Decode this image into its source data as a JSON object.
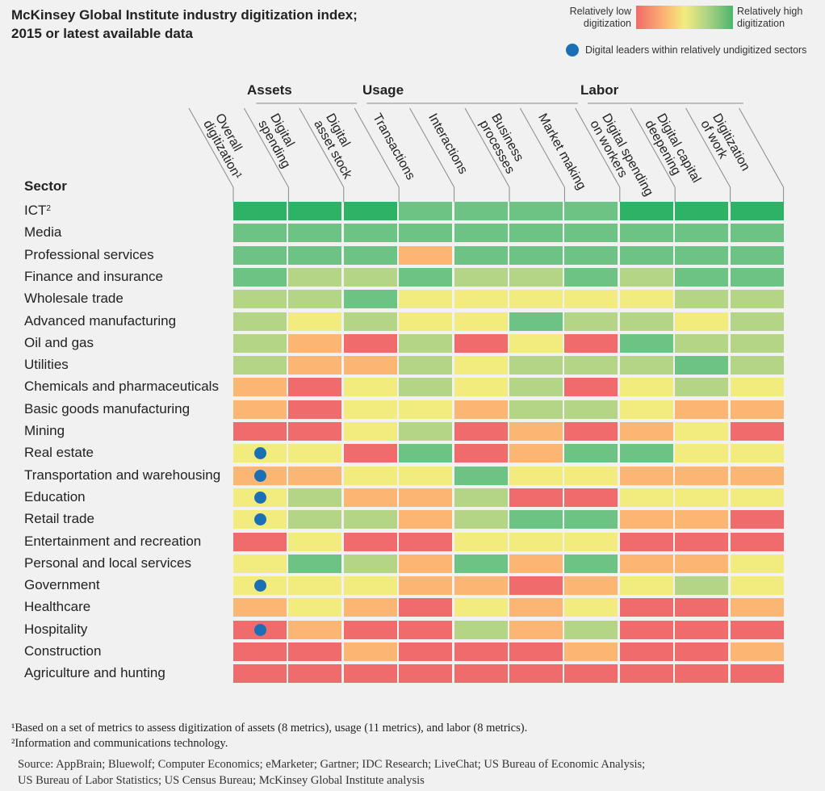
{
  "chart_data": {
    "type": "heatmap",
    "title": "McKinsey Global Institute industry digitization index; 2015 or latest available data",
    "title_lines": [
      "McKinsey Global Institute industry digitization index;",
      "2015 or latest available data"
    ],
    "legend": {
      "low_label": [
        "Relatively low",
        "digitization"
      ],
      "high_label": [
        "Relatively high",
        "digitization"
      ],
      "leader_label": "Digital leaders within relatively undigitized sectors",
      "placement": "top-right"
    },
    "scale": {
      "description": "ordinal color level, 1 = relatively low digitization, 6 = relatively high digitization",
      "colors": {
        "1": "#f06b6b",
        "2": "#fcb673",
        "3": "#f2ec7e",
        "4": "#b3d585",
        "5": "#6cc383",
        "6": "#2eb266"
      },
      "leader_dot_color": "#1a6fb5"
    },
    "groups": [
      {
        "name": "Assets",
        "columns": [
          1,
          2
        ]
      },
      {
        "name": "Usage",
        "columns": [
          3,
          4,
          5,
          6
        ]
      },
      {
        "name": "Labor",
        "columns": [
          7,
          8,
          9
        ]
      }
    ],
    "columns": [
      {
        "lines": [
          "Overall",
          "digitization¹"
        ]
      },
      {
        "lines": [
          "Digital",
          "spending"
        ]
      },
      {
        "lines": [
          "Digital",
          "asset stock"
        ]
      },
      {
        "lines": [
          "Transactions"
        ]
      },
      {
        "lines": [
          "Interactions"
        ]
      },
      {
        "lines": [
          "Business",
          "processes"
        ]
      },
      {
        "lines": [
          "Market making"
        ]
      },
      {
        "lines": [
          "Digital spending",
          "on workers"
        ]
      },
      {
        "lines": [
          "Digital capital",
          "deepening"
        ]
      },
      {
        "lines": [
          "Digitization",
          "of work"
        ]
      }
    ],
    "row_header": "Sector",
    "rows": [
      {
        "sector": "ICT",
        "sup": "2",
        "levels": [
          6,
          6,
          6,
          5,
          5,
          5,
          5,
          6,
          6,
          6
        ],
        "leader": false
      },
      {
        "sector": "Media",
        "levels": [
          5,
          5,
          5,
          5,
          5,
          5,
          5,
          5,
          5,
          5
        ],
        "leader": false
      },
      {
        "sector": "Professional services",
        "levels": [
          5,
          5,
          5,
          2,
          5,
          5,
          5,
          5,
          5,
          5
        ],
        "leader": false
      },
      {
        "sector": "Finance and insurance",
        "levels": [
          5,
          4,
          4,
          5,
          4,
          4,
          5,
          4,
          5,
          5
        ],
        "leader": false
      },
      {
        "sector": "Wholesale trade",
        "levels": [
          4,
          4,
          5,
          3,
          3,
          3,
          3,
          3,
          4,
          4
        ],
        "leader": false
      },
      {
        "sector": "Advanced manufacturing",
        "levels": [
          4,
          3,
          4,
          3,
          3,
          5,
          4,
          4,
          3,
          4
        ],
        "leader": false
      },
      {
        "sector": "Oil and gas",
        "levels": [
          4,
          2,
          1,
          4,
          1,
          3,
          1,
          5,
          4,
          4
        ],
        "leader": false
      },
      {
        "sector": "Utilities",
        "levels": [
          4,
          2,
          2,
          4,
          3,
          4,
          4,
          4,
          5,
          4
        ],
        "leader": false
      },
      {
        "sector": "Chemicals and pharmaceuticals",
        "levels": [
          2,
          1,
          3,
          4,
          3,
          4,
          1,
          3,
          4,
          3
        ],
        "leader": false
      },
      {
        "sector": "Basic goods manufacturing",
        "levels": [
          2,
          1,
          3,
          3,
          2,
          4,
          4,
          3,
          2,
          2
        ],
        "leader": false
      },
      {
        "sector": "Mining",
        "levels": [
          1,
          1,
          3,
          4,
          1,
          2,
          1,
          2,
          3,
          1
        ],
        "leader": false
      },
      {
        "sector": "Real estate",
        "levels": [
          3,
          3,
          1,
          5,
          1,
          2,
          5,
          5,
          3,
          3
        ],
        "leader": true
      },
      {
        "sector": "Transportation and warehousing",
        "levels": [
          2,
          2,
          3,
          3,
          5,
          3,
          3,
          2,
          2,
          2
        ],
        "leader": true
      },
      {
        "sector": "Education",
        "levels": [
          3,
          4,
          2,
          2,
          4,
          1,
          1,
          3,
          3,
          3
        ],
        "leader": true
      },
      {
        "sector": "Retail trade",
        "levels": [
          3,
          4,
          4,
          2,
          4,
          5,
          5,
          2,
          2,
          1
        ],
        "leader": true
      },
      {
        "sector": "Entertainment and recreation",
        "levels": [
          1,
          3,
          1,
          1,
          3,
          3,
          3,
          1,
          1,
          1
        ],
        "leader": false
      },
      {
        "sector": "Personal and local services",
        "levels": [
          3,
          5,
          4,
          2,
          5,
          2,
          5,
          2,
          2,
          3
        ],
        "leader": false
      },
      {
        "sector": "Government",
        "levels": [
          3,
          3,
          3,
          2,
          2,
          1,
          2,
          3,
          4,
          3
        ],
        "leader": true
      },
      {
        "sector": "Healthcare",
        "levels": [
          2,
          3,
          2,
          1,
          3,
          2,
          3,
          1,
          1,
          2
        ],
        "leader": false
      },
      {
        "sector": "Hospitality",
        "levels": [
          1,
          2,
          1,
          1,
          4,
          2,
          4,
          1,
          1,
          1
        ],
        "leader": true
      },
      {
        "sector": "Construction",
        "levels": [
          1,
          1,
          2,
          1,
          1,
          1,
          2,
          1,
          1,
          2
        ],
        "leader": false
      },
      {
        "sector": "Agriculture and hunting",
        "levels": [
          1,
          1,
          1,
          1,
          1,
          1,
          1,
          1,
          1,
          1
        ],
        "leader": false
      }
    ],
    "footnotes": [
      "¹Based on a set of metrics to assess digitization of assets (8 metrics), usage (11 metrics), and labor (8 metrics).",
      "²Information and communications technology."
    ],
    "source": [
      "Source: AppBrain; Bluewolf; Computer Economics; eMarketer; Gartner; IDC Research; LiveChat; US Bureau of Economic Analysis;",
      "US Bureau of Labor Statistics; US Census Bureau; McKinsey Global Institute analysis"
    ]
  }
}
